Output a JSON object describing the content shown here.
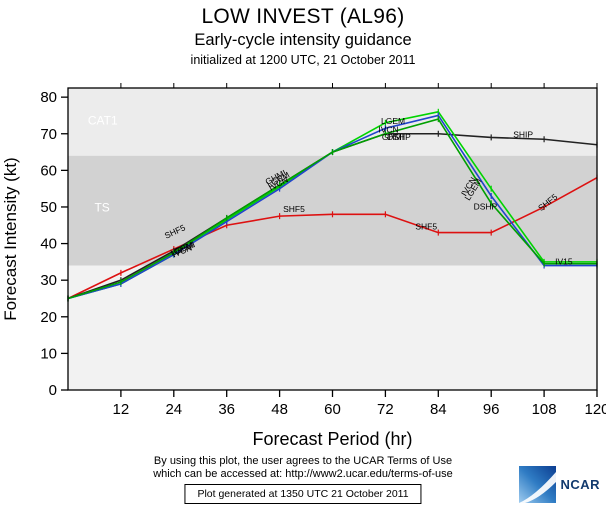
{
  "header": {
    "title": "LOW INVEST (AL96)",
    "subtitle": "Early-cycle intensity guidance",
    "init_line": "initialized at 1200 UTC, 21 October 2011"
  },
  "chart_data": {
    "type": "line",
    "title": "LOW INVEST (AL96) Early-cycle intensity guidance",
    "xlabel": "Forecast Period (hr)",
    "ylabel": "Forecast Intensity (kt)",
    "xlim": [
      0,
      120
    ],
    "ylim": [
      0,
      80
    ],
    "xticks": [
      12,
      24,
      36,
      48,
      60,
      72,
      84,
      96,
      108,
      120
    ],
    "yticks": [
      0,
      10,
      20,
      30,
      40,
      50,
      60,
      70,
      80
    ],
    "grid": false,
    "legend": "inline-labels",
    "x": [
      0,
      12,
      24,
      36,
      48,
      60,
      72,
      84,
      96,
      108,
      120
    ],
    "bands": [
      {
        "label": "CAT1",
        "from": 64,
        "to": 80,
        "color": "#ececec",
        "label_x": 4.5,
        "label_y": 72.5
      },
      {
        "label": "TS",
        "from": 34,
        "to": 64,
        "color": "#d2d2d2",
        "label_x": 6,
        "label_y": 48.8
      },
      {
        "label": "",
        "from": 0,
        "to": 34,
        "color": "#f2f2f2"
      }
    ],
    "series": [
      {
        "name": "SHF5",
        "color": "#dd1111",
        "values": [
          25,
          32,
          38.5,
          45,
          47.5,
          48,
          48,
          43,
          43,
          50,
          58
        ]
      },
      {
        "name": "SHIP",
        "color": "#222222",
        "values": [
          25,
          30,
          38,
          47,
          56,
          65,
          70,
          70,
          69,
          68.5,
          67
        ]
      },
      {
        "name": "LGEM",
        "color": "#00d400",
        "values": [
          25,
          29,
          37,
          46.5,
          55.5,
          65,
          73,
          76,
          55,
          35,
          35
        ]
      },
      {
        "name": "IVCN",
        "color": "#2244cc",
        "values": [
          25,
          29,
          37,
          46,
          55,
          65,
          71.5,
          75,
          53,
          34,
          34
        ]
      },
      {
        "name": "GHMI",
        "color": "#00a000",
        "values": [
          25,
          29.5,
          37.5,
          47,
          56,
          65,
          70,
          74,
          51,
          34.5,
          34.5
        ]
      }
    ],
    "annotations": [
      {
        "text": "SHF5",
        "x": 22.3,
        "y": 41.3,
        "rot": -25
      },
      {
        "text": "LGEM",
        "x": 23.6,
        "y": 36.6,
        "rot": -22
      },
      {
        "text": "IVCN",
        "x": 24.0,
        "y": 36.2,
        "rot": -22
      },
      {
        "text": "GHMI",
        "x": 24.3,
        "y": 36.9,
        "rot": -22
      },
      {
        "text": "GHMI",
        "x": 45.2,
        "y": 56.0,
        "rot": -28
      },
      {
        "text": "LGEM",
        "x": 45.6,
        "y": 55.2,
        "rot": -28
      },
      {
        "text": "IVCN",
        "x": 46.0,
        "y": 54.4,
        "rot": -28
      },
      {
        "text": "SHF5",
        "x": 48.8,
        "y": 48.6,
        "rot": 0
      },
      {
        "text": "LGEM",
        "x": 71.0,
        "y": 72.6,
        "rot": 0
      },
      {
        "text": "IVCN",
        "x": 70.4,
        "y": 70.4,
        "rot": 0
      },
      {
        "text": "GHMI",
        "x": 71.2,
        "y": 68.3,
        "rot": 0
      },
      {
        "text": "DSHP",
        "x": 72.4,
        "y": 68.3,
        "rot": 0
      },
      {
        "text": "SHIP",
        "x": 101.0,
        "y": 69.0,
        "rot": 0
      },
      {
        "text": "IVCN",
        "x": 90.2,
        "y": 52.8,
        "rot": -58
      },
      {
        "text": "LGEM",
        "x": 91.0,
        "y": 51.6,
        "rot": -58
      },
      {
        "text": "DSHP",
        "x": 92.0,
        "y": 49.3,
        "rot": 0
      },
      {
        "text": "SHF5",
        "x": 78.8,
        "y": 43.9,
        "rot": 0
      },
      {
        "text": "SHF5",
        "x": 107.3,
        "y": 48.8,
        "rot": -38
      },
      {
        "text": "IV15",
        "x": 110.5,
        "y": 34.3,
        "rot": 0
      }
    ]
  },
  "footer": {
    "terms_line1": "By using this plot, the user agrees to the UCAR Terms of Use",
    "terms_line2": "which can be accessed at: http://www2.ucar.edu/terms-of-use",
    "generated": "Plot generated at 1350 UTC  21 October 2011"
  },
  "logo": {
    "text": "NCAR"
  }
}
